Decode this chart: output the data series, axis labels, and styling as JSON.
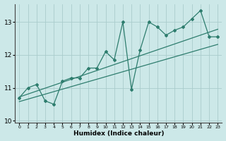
{
  "xlabel": "Humidex (Indice chaleur)",
  "x_data": [
    0,
    1,
    2,
    3,
    4,
    5,
    6,
    7,
    8,
    9,
    10,
    11,
    12,
    13,
    14,
    15,
    16,
    17,
    18,
    19,
    20,
    21,
    22,
    23
  ],
  "y_data": [
    10.7,
    11.0,
    11.1,
    10.6,
    10.5,
    11.2,
    11.3,
    11.3,
    11.6,
    11.6,
    12.1,
    11.85,
    13.0,
    10.95,
    12.15,
    13.0,
    12.85,
    12.6,
    12.75,
    12.85,
    13.1,
    13.35,
    12.55,
    12.55
  ],
  "trend1_x": [
    0,
    23
  ],
  "trend1_y": [
    10.72,
    12.78
  ],
  "trend2_x": [
    0,
    23
  ],
  "trend2_y": [
    10.58,
    12.32
  ],
  "line_color": "#2e7d6e",
  "bg_color": "#cce8e8",
  "grid_color": "#aacccc",
  "xlim": [
    -0.5,
    23.5
  ],
  "ylim": [
    9.95,
    13.55
  ],
  "yticks": [
    10,
    11,
    12,
    13
  ],
  "xticks": [
    0,
    1,
    2,
    3,
    4,
    5,
    6,
    7,
    8,
    9,
    10,
    11,
    12,
    13,
    14,
    15,
    16,
    17,
    18,
    19,
    20,
    21,
    22,
    23
  ]
}
